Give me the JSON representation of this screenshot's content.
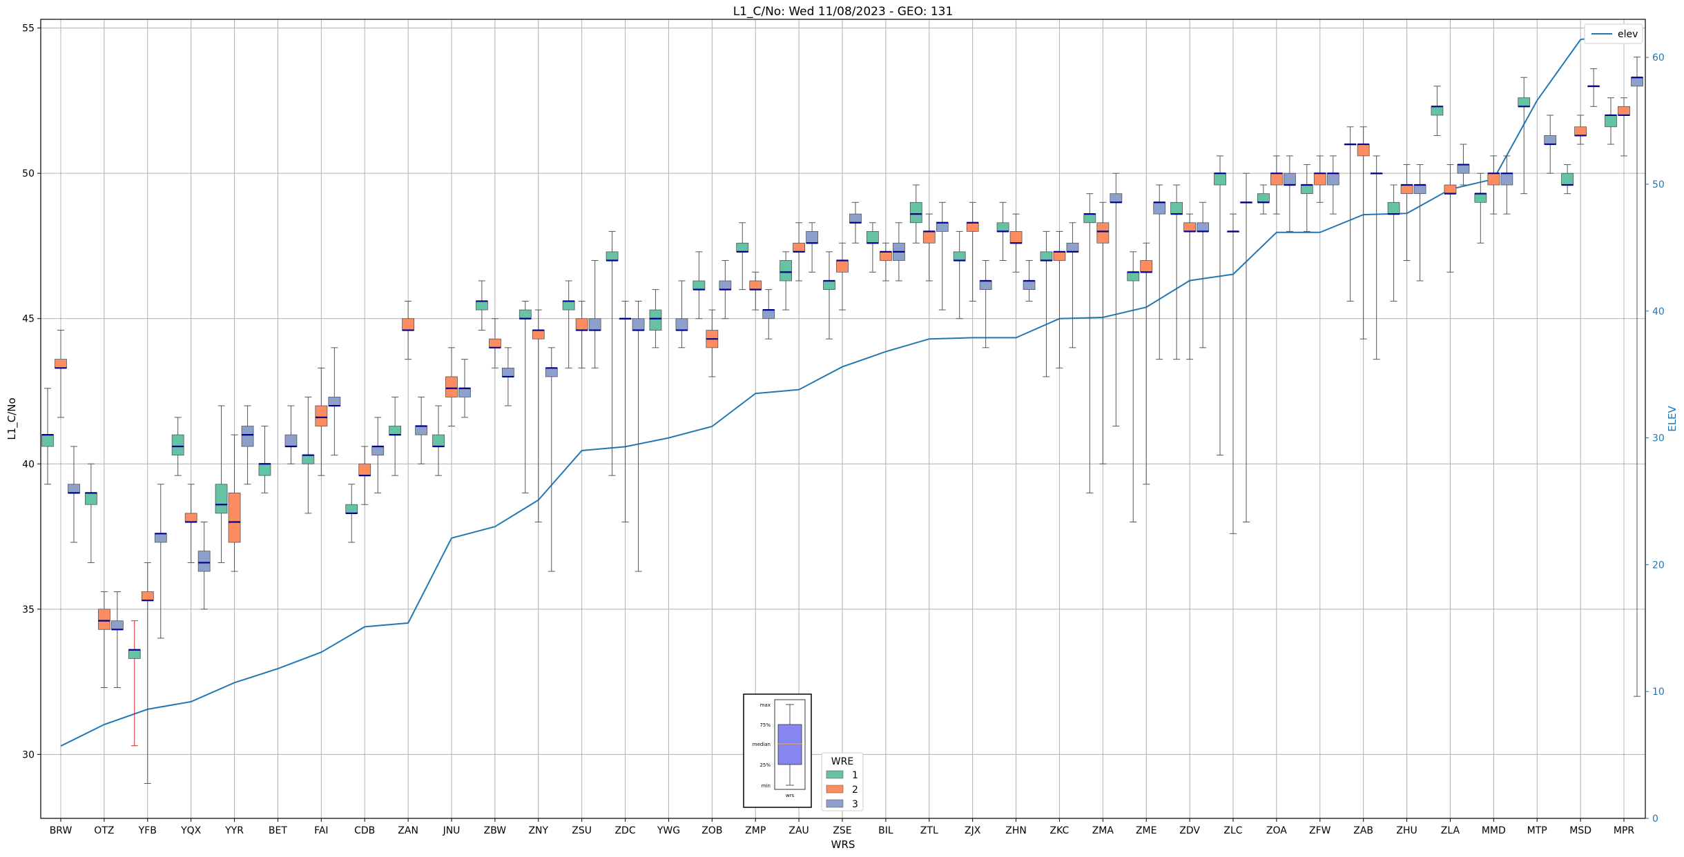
{
  "chart_data": {
    "type": "box",
    "title": "L1_C/No: Wed 11/08/2023 - GEO: 131",
    "xlabel": "WRS",
    "ylabel": "L1_C/No",
    "y2label": "ELEV",
    "ylim": [
      27.8,
      55.3
    ],
    "y2lim": [
      0,
      63.0
    ],
    "yticks": [
      30,
      35,
      40,
      45,
      50,
      55
    ],
    "y2ticks": [
      0,
      10,
      20,
      30,
      40,
      50,
      60
    ],
    "grid": true,
    "categories": [
      "BRW",
      "OTZ",
      "YFB",
      "YQX",
      "YYR",
      "BET",
      "FAI",
      "CDB",
      "ZAN",
      "JNU",
      "ZBW",
      "ZNY",
      "ZSU",
      "ZDC",
      "YWG",
      "ZOB",
      "ZMP",
      "ZAU",
      "ZSE",
      "BIL",
      "ZTL",
      "ZJX",
      "ZHN",
      "ZKC",
      "ZMA",
      "ZME",
      "ZDV",
      "ZLC",
      "ZOA",
      "ZFW",
      "ZAB",
      "ZHU",
      "ZLA",
      "MMD",
      "MTP",
      "MSD",
      "MPR"
    ],
    "elev": [
      5.7,
      7.4,
      8.6,
      9.2,
      10.7,
      11.8,
      13.1,
      15.1,
      15.4,
      22.1,
      23.0,
      25.1,
      29.0,
      29.3,
      30.0,
      30.9,
      33.5,
      33.8,
      35.6,
      36.8,
      37.8,
      37.9,
      37.9,
      39.4,
      39.5,
      40.3,
      42.4,
      42.9,
      46.2,
      46.2,
      47.6,
      47.7,
      49.6,
      50.4,
      56.6,
      61.4,
      62.0
    ],
    "legend": {
      "line_label": "elev",
      "wre_title": "WRE",
      "wre_labels": [
        "1",
        "2",
        "3"
      ],
      "wre_colors": [
        "#66c2a5",
        "#fc8d62",
        "#8da0cb"
      ],
      "line_color": "#1f77b4",
      "median_color": "#00008b",
      "whisker_color": "#555555",
      "highlight_whisker_color": "#d62728"
    },
    "inset_key": {
      "labels": [
        "max",
        "75%",
        "median",
        "25%",
        "min"
      ],
      "xlabel": "wrs"
    },
    "boxes": [
      {
        "wrs": "BRW",
        "wre": 1,
        "min": 39.3,
        "q1": 40.6,
        "med": 41.0,
        "q3": 41.0,
        "max": 42.6
      },
      {
        "wrs": "BRW",
        "wre": 2,
        "min": 41.6,
        "q1": 43.3,
        "med": 43.3,
        "q3": 43.6,
        "max": 44.6
      },
      {
        "wrs": "BRW",
        "wre": 3,
        "min": 37.3,
        "q1": 39.0,
        "med": 39.0,
        "q3": 39.3,
        "max": 40.6
      },
      {
        "wrs": "OTZ",
        "wre": 1,
        "min": 36.6,
        "q1": 38.6,
        "med": 39.0,
        "q3": 39.0,
        "max": 40.0
      },
      {
        "wrs": "OTZ",
        "wre": 2,
        "min": 32.3,
        "q1": 34.3,
        "med": 34.6,
        "q3": 35.0,
        "max": 35.6
      },
      {
        "wrs": "OTZ",
        "wre": 3,
        "min": 32.3,
        "q1": 34.3,
        "med": 34.3,
        "q3": 34.6,
        "max": 35.6
      },
      {
        "wrs": "YFB",
        "wre": 1,
        "min": 30.3,
        "q1": 33.3,
        "med": 33.6,
        "q3": 33.6,
        "max": 34.6,
        "highlight": true
      },
      {
        "wrs": "YFB",
        "wre": 2,
        "min": 29.0,
        "q1": 35.3,
        "med": 35.3,
        "q3": 35.6,
        "max": 36.6
      },
      {
        "wrs": "YFB",
        "wre": 3,
        "min": 34.0,
        "q1": 37.3,
        "med": 37.6,
        "q3": 37.6,
        "max": 39.3
      },
      {
        "wrs": "YQX",
        "wre": 1,
        "min": 39.6,
        "q1": 40.3,
        "med": 40.6,
        "q3": 41.0,
        "max": 41.6
      },
      {
        "wrs": "YQX",
        "wre": 2,
        "min": 36.6,
        "q1": 38.0,
        "med": 38.0,
        "q3": 38.3,
        "max": 39.3
      },
      {
        "wrs": "YQX",
        "wre": 3,
        "min": 35.0,
        "q1": 36.3,
        "med": 36.6,
        "q3": 37.0,
        "max": 38.0
      },
      {
        "wrs": "YYR",
        "wre": 1,
        "min": 36.6,
        "q1": 38.3,
        "med": 38.6,
        "q3": 39.3,
        "max": 42.0
      },
      {
        "wrs": "YYR",
        "wre": 2,
        "min": 36.3,
        "q1": 37.3,
        "med": 38.0,
        "q3": 39.0,
        "max": 41.0
      },
      {
        "wrs": "YYR",
        "wre": 3,
        "min": 39.3,
        "q1": 40.6,
        "med": 41.0,
        "q3": 41.3,
        "max": 42.0
      },
      {
        "wrs": "BET",
        "wre": 1,
        "min": 39.0,
        "q1": 39.6,
        "med": 40.0,
        "q3": 40.0,
        "max": 41.3
      },
      {
        "wrs": "BET",
        "wre": 3,
        "min": 40.0,
        "q1": 40.6,
        "med": 40.6,
        "q3": 41.0,
        "max": 42.0
      },
      {
        "wrs": "FAI",
        "wre": 1,
        "min": 38.3,
        "q1": 40.0,
        "med": 40.3,
        "q3": 40.3,
        "max": 42.3
      },
      {
        "wrs": "FAI",
        "wre": 2,
        "min": 39.6,
        "q1": 41.3,
        "med": 41.6,
        "q3": 42.0,
        "max": 43.3
      },
      {
        "wrs": "FAI",
        "wre": 3,
        "min": 40.3,
        "q1": 42.0,
        "med": 42.0,
        "q3": 42.3,
        "max": 44.0
      },
      {
        "wrs": "CDB",
        "wre": 1,
        "min": 37.3,
        "q1": 38.3,
        "med": 38.3,
        "q3": 38.6,
        "max": 39.3
      },
      {
        "wrs": "CDB",
        "wre": 2,
        "min": 38.6,
        "q1": 39.6,
        "med": 39.6,
        "q3": 40.0,
        "max": 40.6
      },
      {
        "wrs": "CDB",
        "wre": 3,
        "min": 39.0,
        "q1": 40.3,
        "med": 40.6,
        "q3": 40.6,
        "max": 41.6
      },
      {
        "wrs": "ZAN",
        "wre": 1,
        "min": 39.6,
        "q1": 41.0,
        "med": 41.0,
        "q3": 41.3,
        "max": 42.3
      },
      {
        "wrs": "ZAN",
        "wre": 2,
        "min": 43.6,
        "q1": 44.6,
        "med": 44.6,
        "q3": 45.0,
        "max": 45.6
      },
      {
        "wrs": "ZAN",
        "wre": 3,
        "min": 40.0,
        "q1": 41.0,
        "med": 41.3,
        "q3": 41.3,
        "max": 42.3
      },
      {
        "wrs": "JNU",
        "wre": 1,
        "min": 39.6,
        "q1": 40.6,
        "med": 40.6,
        "q3": 41.0,
        "max": 42.0
      },
      {
        "wrs": "JNU",
        "wre": 2,
        "min": 41.3,
        "q1": 42.3,
        "med": 42.6,
        "q3": 43.0,
        "max": 44.0
      },
      {
        "wrs": "JNU",
        "wre": 3,
        "min": 41.6,
        "q1": 42.3,
        "med": 42.6,
        "q3": 42.6,
        "max": 43.6
      },
      {
        "wrs": "ZBW",
        "wre": 1,
        "min": 44.6,
        "q1": 45.3,
        "med": 45.6,
        "q3": 45.6,
        "max": 46.3
      },
      {
        "wrs": "ZBW",
        "wre": 2,
        "min": 43.3,
        "q1": 44.0,
        "med": 44.0,
        "q3": 44.3,
        "max": 45.0
      },
      {
        "wrs": "ZBW",
        "wre": 3,
        "min": 42.0,
        "q1": 43.0,
        "med": 43.0,
        "q3": 43.3,
        "max": 44.0
      },
      {
        "wrs": "ZNY",
        "wre": 1,
        "min": 39.0,
        "q1": 45.0,
        "med": 45.0,
        "q3": 45.3,
        "max": 45.6
      },
      {
        "wrs": "ZNY",
        "wre": 2,
        "min": 38.0,
        "q1": 44.3,
        "med": 44.6,
        "q3": 44.6,
        "max": 45.3
      },
      {
        "wrs": "ZNY",
        "wre": 3,
        "min": 36.3,
        "q1": 43.0,
        "med": 43.3,
        "q3": 43.3,
        "max": 44.0
      },
      {
        "wrs": "ZSU",
        "wre": 1,
        "min": 43.3,
        "q1": 45.3,
        "med": 45.6,
        "q3": 45.6,
        "max": 46.3
      },
      {
        "wrs": "ZSU",
        "wre": 2,
        "min": 43.3,
        "q1": 44.6,
        "med": 44.6,
        "q3": 45.0,
        "max": 45.6
      },
      {
        "wrs": "ZSU",
        "wre": 3,
        "min": 43.3,
        "q1": 44.6,
        "med": 44.6,
        "q3": 45.0,
        "max": 47.0
      },
      {
        "wrs": "ZDC",
        "wre": 1,
        "min": 39.6,
        "q1": 47.0,
        "med": 47.0,
        "q3": 47.3,
        "max": 48.0
      },
      {
        "wrs": "ZDC",
        "wre": 2,
        "min": 38.0,
        "q1": 45.0,
        "med": 45.0,
        "q3": 45.0,
        "max": 45.6
      },
      {
        "wrs": "ZDC",
        "wre": 3,
        "min": 36.3,
        "q1": 44.6,
        "med": 44.6,
        "q3": 45.0,
        "max": 45.6
      },
      {
        "wrs": "YWG",
        "wre": 1,
        "min": 44.0,
        "q1": 44.6,
        "med": 45.0,
        "q3": 45.3,
        "max": 46.0
      },
      {
        "wrs": "YWG",
        "wre": 3,
        "min": 44.0,
        "q1": 44.6,
        "med": 44.6,
        "q3": 45.0,
        "max": 46.3
      },
      {
        "wrs": "ZOB",
        "wre": 1,
        "min": 45.0,
        "q1": 46.0,
        "med": 46.0,
        "q3": 46.3,
        "max": 47.3
      },
      {
        "wrs": "ZOB",
        "wre": 2,
        "min": 43.0,
        "q1": 44.0,
        "med": 44.3,
        "q3": 44.6,
        "max": 45.3
      },
      {
        "wrs": "ZOB",
        "wre": 3,
        "min": 45.0,
        "q1": 46.0,
        "med": 46.0,
        "q3": 46.3,
        "max": 47.0
      },
      {
        "wrs": "ZMP",
        "wre": 1,
        "min": 46.0,
        "q1": 47.3,
        "med": 47.3,
        "q3": 47.6,
        "max": 48.3
      },
      {
        "wrs": "ZMP",
        "wre": 2,
        "min": 45.3,
        "q1": 46.0,
        "med": 46.0,
        "q3": 46.3,
        "max": 46.6
      },
      {
        "wrs": "ZMP",
        "wre": 3,
        "min": 44.3,
        "q1": 45.0,
        "med": 45.3,
        "q3": 45.3,
        "max": 46.0
      },
      {
        "wrs": "ZAU",
        "wre": 1,
        "min": 45.3,
        "q1": 46.3,
        "med": 46.6,
        "q3": 47.0,
        "max": 47.3
      },
      {
        "wrs": "ZAU",
        "wre": 2,
        "min": 46.3,
        "q1": 47.3,
        "med": 47.3,
        "q3": 47.6,
        "max": 48.3
      },
      {
        "wrs": "ZAU",
        "wre": 3,
        "min": 46.6,
        "q1": 47.6,
        "med": 47.6,
        "q3": 48.0,
        "max": 48.3
      },
      {
        "wrs": "ZSE",
        "wre": 1,
        "min": 44.3,
        "q1": 46.0,
        "med": 46.3,
        "q3": 46.3,
        "max": 47.3
      },
      {
        "wrs": "ZSE",
        "wre": 2,
        "min": 45.3,
        "q1": 46.6,
        "med": 47.0,
        "q3": 47.0,
        "max": 47.6
      },
      {
        "wrs": "ZSE",
        "wre": 3,
        "min": 47.6,
        "q1": 48.3,
        "med": 48.3,
        "q3": 48.6,
        "max": 49.0
      },
      {
        "wrs": "BIL",
        "wre": 1,
        "min": 46.6,
        "q1": 47.6,
        "med": 47.6,
        "q3": 48.0,
        "max": 48.3
      },
      {
        "wrs": "BIL",
        "wre": 2,
        "min": 46.3,
        "q1": 47.0,
        "med": 47.3,
        "q3": 47.3,
        "max": 47.6
      },
      {
        "wrs": "BIL",
        "wre": 3,
        "min": 46.3,
        "q1": 47.0,
        "med": 47.3,
        "q3": 47.6,
        "max": 48.3
      },
      {
        "wrs": "ZTL",
        "wre": 1,
        "min": 47.6,
        "q1": 48.3,
        "med": 48.6,
        "q3": 49.0,
        "max": 49.6
      },
      {
        "wrs": "ZTL",
        "wre": 2,
        "min": 46.3,
        "q1": 47.6,
        "med": 48.0,
        "q3": 48.0,
        "max": 48.6
      },
      {
        "wrs": "ZTL",
        "wre": 3,
        "min": 45.3,
        "q1": 48.0,
        "med": 48.3,
        "q3": 48.3,
        "max": 49.0
      },
      {
        "wrs": "ZJX",
        "wre": 1,
        "min": 45.0,
        "q1": 47.0,
        "med": 47.0,
        "q3": 47.3,
        "max": 48.0
      },
      {
        "wrs": "ZJX",
        "wre": 2,
        "min": 45.6,
        "q1": 48.0,
        "med": 48.3,
        "q3": 48.3,
        "max": 49.0
      },
      {
        "wrs": "ZJX",
        "wre": 3,
        "min": 44.0,
        "q1": 46.0,
        "med": 46.3,
        "q3": 46.3,
        "max": 47.0
      },
      {
        "wrs": "ZHN",
        "wre": 1,
        "min": 47.0,
        "q1": 48.0,
        "med": 48.0,
        "q3": 48.3,
        "max": 49.0
      },
      {
        "wrs": "ZHN",
        "wre": 2,
        "min": 46.6,
        "q1": 47.6,
        "med": 47.6,
        "q3": 48.0,
        "max": 48.6
      },
      {
        "wrs": "ZHN",
        "wre": 3,
        "min": 45.6,
        "q1": 46.0,
        "med": 46.3,
        "q3": 46.3,
        "max": 47.0
      },
      {
        "wrs": "ZKC",
        "wre": 1,
        "min": 43.0,
        "q1": 47.0,
        "med": 47.0,
        "q3": 47.3,
        "max": 48.0
      },
      {
        "wrs": "ZKC",
        "wre": 2,
        "min": 43.3,
        "q1": 47.0,
        "med": 47.3,
        "q3": 47.3,
        "max": 48.0
      },
      {
        "wrs": "ZKC",
        "wre": 3,
        "min": 44.0,
        "q1": 47.3,
        "med": 47.3,
        "q3": 47.6,
        "max": 48.3
      },
      {
        "wrs": "ZMA",
        "wre": 1,
        "min": 39.0,
        "q1": 48.3,
        "med": 48.6,
        "q3": 48.6,
        "max": 49.3
      },
      {
        "wrs": "ZMA",
        "wre": 2,
        "min": 40.0,
        "q1": 47.6,
        "med": 48.0,
        "q3": 48.3,
        "max": 49.0
      },
      {
        "wrs": "ZMA",
        "wre": 3,
        "min": 41.3,
        "q1": 49.0,
        "med": 49.0,
        "q3": 49.3,
        "max": 50.0
      },
      {
        "wrs": "ZME",
        "wre": 1,
        "min": 38.0,
        "q1": 46.3,
        "med": 46.6,
        "q3": 46.6,
        "max": 47.3
      },
      {
        "wrs": "ZME",
        "wre": 2,
        "min": 39.3,
        "q1": 46.6,
        "med": 46.6,
        "q3": 47.0,
        "max": 47.6
      },
      {
        "wrs": "ZME",
        "wre": 3,
        "min": 43.6,
        "q1": 48.6,
        "med": 49.0,
        "q3": 49.0,
        "max": 49.6
      },
      {
        "wrs": "ZDV",
        "wre": 1,
        "min": 43.6,
        "q1": 48.6,
        "med": 48.6,
        "q3": 49.0,
        "max": 49.6
      },
      {
        "wrs": "ZDV",
        "wre": 2,
        "min": 43.6,
        "q1": 48.0,
        "med": 48.0,
        "q3": 48.3,
        "max": 48.6
      },
      {
        "wrs": "ZDV",
        "wre": 3,
        "min": 44.0,
        "q1": 48.0,
        "med": 48.0,
        "q3": 48.3,
        "max": 49.0
      },
      {
        "wrs": "ZLC",
        "wre": 1,
        "min": 40.3,
        "q1": 49.6,
        "med": 50.0,
        "q3": 50.0,
        "max": 50.6
      },
      {
        "wrs": "ZLC",
        "wre": 2,
        "min": 37.6,
        "q1": 48.0,
        "med": 48.0,
        "q3": 48.0,
        "max": 48.6
      },
      {
        "wrs": "ZLC",
        "wre": 3,
        "min": 38.0,
        "q1": 49.0,
        "med": 49.0,
        "q3": 49.0,
        "max": 50.0
      },
      {
        "wrs": "ZOA",
        "wre": 1,
        "min": 48.6,
        "q1": 49.0,
        "med": 49.0,
        "q3": 49.3,
        "max": 49.6
      },
      {
        "wrs": "ZOA",
        "wre": 2,
        "min": 48.6,
        "q1": 49.6,
        "med": 50.0,
        "q3": 50.0,
        "max": 50.6
      },
      {
        "wrs": "ZOA",
        "wre": 3,
        "min": 48.0,
        "q1": 49.6,
        "med": 49.6,
        "q3": 50.0,
        "max": 50.6
      },
      {
        "wrs": "ZFW",
        "wre": 1,
        "min": 48.0,
        "q1": 49.3,
        "med": 49.6,
        "q3": 49.6,
        "max": 50.3
      },
      {
        "wrs": "ZFW",
        "wre": 2,
        "min": 49.0,
        "q1": 49.6,
        "med": 50.0,
        "q3": 50.0,
        "max": 50.6
      },
      {
        "wrs": "ZFW",
        "wre": 3,
        "min": 48.6,
        "q1": 49.6,
        "med": 50.0,
        "q3": 50.0,
        "max": 50.6
      },
      {
        "wrs": "ZAB",
        "wre": 1,
        "min": 45.6,
        "q1": 51.0,
        "med": 51.0,
        "q3": 51.0,
        "max": 51.6
      },
      {
        "wrs": "ZAB",
        "wre": 2,
        "min": 44.3,
        "q1": 50.6,
        "med": 51.0,
        "q3": 51.0,
        "max": 51.6
      },
      {
        "wrs": "ZAB",
        "wre": 3,
        "min": 43.6,
        "q1": 50.0,
        "med": 50.0,
        "q3": 50.0,
        "max": 50.6
      },
      {
        "wrs": "ZHU",
        "wre": 1,
        "min": 45.6,
        "q1": 48.6,
        "med": 48.6,
        "q3": 49.0,
        "max": 49.6
      },
      {
        "wrs": "ZHU",
        "wre": 2,
        "min": 47.0,
        "q1": 49.3,
        "med": 49.6,
        "q3": 49.6,
        "max": 50.3
      },
      {
        "wrs": "ZHU",
        "wre": 3,
        "min": 46.3,
        "q1": 49.3,
        "med": 49.6,
        "q3": 49.6,
        "max": 50.3
      },
      {
        "wrs": "ZLA",
        "wre": 1,
        "min": 51.3,
        "q1": 52.0,
        "med": 52.3,
        "q3": 52.3,
        "max": 53.0
      },
      {
        "wrs": "ZLA",
        "wre": 2,
        "min": 46.6,
        "q1": 49.3,
        "med": 49.3,
        "q3": 49.6,
        "max": 50.3
      },
      {
        "wrs": "ZLA",
        "wre": 3,
        "min": 49.6,
        "q1": 50.0,
        "med": 50.3,
        "q3": 50.3,
        "max": 51.0
      },
      {
        "wrs": "MMD",
        "wre": 1,
        "min": 47.6,
        "q1": 49.0,
        "med": 49.3,
        "q3": 49.3,
        "max": 50.0
      },
      {
        "wrs": "MMD",
        "wre": 2,
        "min": 48.6,
        "q1": 49.6,
        "med": 50.0,
        "q3": 50.0,
        "max": 50.6
      },
      {
        "wrs": "MMD",
        "wre": 3,
        "min": 48.6,
        "q1": 49.6,
        "med": 50.0,
        "q3": 50.0,
        "max": 50.6
      },
      {
        "wrs": "MTP",
        "wre": 1,
        "min": 49.3,
        "q1": 52.3,
        "med": 52.3,
        "q3": 52.6,
        "max": 53.3
      },
      {
        "wrs": "MTP",
        "wre": 3,
        "min": 50.0,
        "q1": 51.0,
        "med": 51.0,
        "q3": 51.3,
        "max": 52.0
      },
      {
        "wrs": "MSD",
        "wre": 1,
        "min": 49.3,
        "q1": 49.6,
        "med": 49.6,
        "q3": 50.0,
        "max": 50.3
      },
      {
        "wrs": "MSD",
        "wre": 2,
        "min": 51.0,
        "q1": 51.3,
        "med": 51.3,
        "q3": 51.6,
        "max": 52.0
      },
      {
        "wrs": "MSD",
        "wre": 3,
        "min": 52.3,
        "q1": 53.0,
        "med": 53.0,
        "q3": 53.0,
        "max": 53.6
      },
      {
        "wrs": "MPR",
        "wre": 1,
        "min": 51.0,
        "q1": 51.6,
        "med": 52.0,
        "q3": 52.0,
        "max": 52.6
      },
      {
        "wrs": "MPR",
        "wre": 2,
        "min": 50.6,
        "q1": 52.0,
        "med": 52.0,
        "q3": 52.3,
        "max": 52.6
      },
      {
        "wrs": "MPR",
        "wre": 3,
        "min": 32.0,
        "q1": 53.0,
        "med": 53.3,
        "q3": 53.3,
        "max": 54.0
      }
    ]
  }
}
